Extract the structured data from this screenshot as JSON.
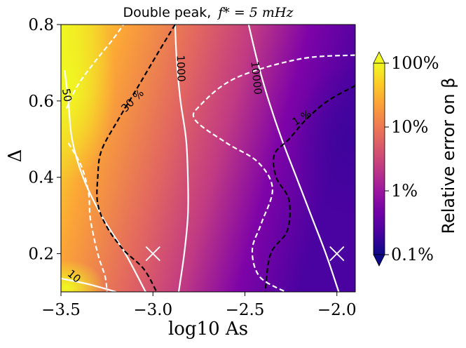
{
  "chart_data": {
    "type": "heatmap",
    "title": "Double peak,  f* = 5 mHz",
    "title_prefix": "Double peak,",
    "title_math": "f* = 5 mHz",
    "xlabel": "log10 As",
    "ylabel": "Δ",
    "xlim": [
      -3.5,
      -1.9
    ],
    "ylim": [
      0.1,
      0.8
    ],
    "x_ticks": [
      -3.5,
      -3.0,
      -2.5,
      -2.0
    ],
    "x_tick_labels": [
      "−3.5",
      "−3.0",
      "−2.5",
      "−2.0"
    ],
    "y_ticks": [
      0.2,
      0.4,
      0.6,
      0.8
    ],
    "y_tick_labels": [
      "0.2",
      "0.4",
      "0.6",
      "0.8"
    ],
    "colorbar": {
      "label": "Relative error on β",
      "scale": "log",
      "range": [
        0.1,
        100
      ],
      "ticks": [
        0.1,
        1,
        10,
        100
      ],
      "tick_labels": [
        "0.1%",
        "1%",
        "10%",
        "100%"
      ],
      "colormap": "plasma",
      "colors": [
        "#0d0887",
        "#46039f",
        "#7201a8",
        "#9c179e",
        "#bd3786",
        "#d8576b",
        "#ed7953",
        "#fb9f3a",
        "#fdca26",
        "#f0f921"
      ]
    },
    "error_contours": [
      {
        "label": "30 %",
        "level": 30,
        "style": "black dashed",
        "points": [
          [
            -2.88,
            0.8
          ],
          [
            -2.98,
            0.72
          ],
          [
            -3.09,
            0.63
          ],
          [
            -3.19,
            0.55
          ],
          [
            -3.28,
            0.47
          ],
          [
            -3.3,
            0.4
          ],
          [
            -3.3,
            0.33
          ],
          [
            -3.25,
            0.27
          ],
          [
            -3.16,
            0.21
          ],
          [
            -3.05,
            0.16
          ],
          [
            -2.98,
            0.1
          ]
        ]
      },
      {
        "label": "1 %",
        "level": 1,
        "style": "black dashed",
        "points": [
          [
            -1.9,
            0.64
          ],
          [
            -2.05,
            0.6
          ],
          [
            -2.17,
            0.55
          ],
          [
            -2.26,
            0.5
          ],
          [
            -2.34,
            0.46
          ],
          [
            -2.33,
            0.4
          ],
          [
            -2.26,
            0.34
          ],
          [
            -2.27,
            0.26
          ],
          [
            -2.36,
            0.2
          ],
          [
            -2.39,
            0.1
          ]
        ]
      }
    ],
    "white_dashed_contours": [
      {
        "label": "",
        "points": [
          [
            -3.47,
            0.58
          ],
          [
            -3.41,
            0.64
          ],
          [
            -3.32,
            0.7
          ],
          [
            -3.22,
            0.76
          ],
          [
            -3.16,
            0.8
          ]
        ]
      },
      {
        "label": "",
        "points": [
          [
            -3.46,
            0.49
          ],
          [
            -3.39,
            0.43
          ],
          [
            -3.35,
            0.36
          ],
          [
            -3.34,
            0.29
          ],
          [
            -3.3,
            0.2
          ],
          [
            -3.26,
            0.14
          ],
          [
            -3.25,
            0.1
          ]
        ]
      },
      {
        "label": "",
        "points": [
          [
            -1.9,
            0.72
          ],
          [
            -2.2,
            0.71
          ],
          [
            -2.55,
            0.66
          ],
          [
            -2.74,
            0.59
          ],
          [
            -2.77,
            0.55
          ],
          [
            -2.6,
            0.49
          ],
          [
            -2.43,
            0.44
          ],
          [
            -2.35,
            0.37
          ],
          [
            -2.41,
            0.28
          ],
          [
            -2.46,
            0.21
          ],
          [
            -2.42,
            0.14
          ],
          [
            -2.28,
            0.1
          ]
        ]
      }
    ],
    "snr_contours": [
      {
        "label": "10",
        "level": 10,
        "points": [
          [
            -3.5,
            0.135
          ],
          [
            -3.35,
            0.12
          ],
          [
            -3.2,
            0.1
          ]
        ]
      },
      {
        "label": "50",
        "level": 50,
        "points": [
          [
            -3.48,
            0.68
          ],
          [
            -3.46,
            0.6
          ],
          [
            -3.44,
            0.5
          ],
          [
            -3.38,
            0.4
          ],
          [
            -3.28,
            0.3
          ],
          [
            -3.15,
            0.2
          ],
          [
            -3.04,
            0.1
          ]
        ]
      },
      {
        "label": "1000",
        "level": 1000,
        "points": [
          [
            -2.88,
            0.8
          ],
          [
            -2.87,
            0.7
          ],
          [
            -2.85,
            0.6
          ],
          [
            -2.82,
            0.5
          ],
          [
            -2.81,
            0.4
          ],
          [
            -2.81,
            0.3
          ],
          [
            -2.83,
            0.2
          ],
          [
            -2.86,
            0.1
          ]
        ]
      },
      {
        "label": "10000",
        "level": 10000,
        "points": [
          [
            -2.48,
            0.8
          ],
          [
            -2.43,
            0.7
          ],
          [
            -2.37,
            0.6
          ],
          [
            -2.3,
            0.5
          ],
          [
            -2.22,
            0.4
          ],
          [
            -2.14,
            0.3
          ],
          [
            -2.06,
            0.2
          ],
          [
            -1.99,
            0.1
          ]
        ]
      }
    ],
    "markers": [
      {
        "symbol": "x",
        "x": -3.0,
        "y": 0.2
      },
      {
        "symbol": "x",
        "x": -2.0,
        "y": 0.2
      }
    ]
  }
}
